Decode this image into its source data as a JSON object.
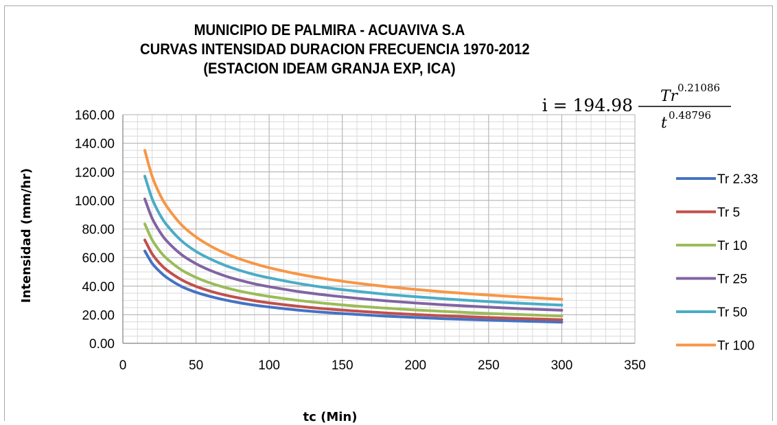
{
  "chart_data": {
    "type": "line",
    "title_lines": [
      "MUNICIPIO DE PALMIRA - ACUAVIVA S.A",
      "CURVAS INTENSIDAD DURACION FRECUENCIA 1970-2012",
      "(ESTACION IDEAM GRANJA EXP, ICA)"
    ],
    "xlabel": "tc (Min)",
    "ylabel": "Intensidad (mm/hr)",
    "xlim": [
      0,
      350
    ],
    "ylim": [
      0,
      160
    ],
    "x_ticks": [
      "0",
      "50",
      "100",
      "150",
      "200",
      "250",
      "300",
      "350"
    ],
    "y_ticks": [
      "0.00",
      "20.00",
      "40.00",
      "60.00",
      "80.00",
      "100.00",
      "120.00",
      "140.00",
      "160.00"
    ],
    "grid": true,
    "legend_position": "right",
    "formula": {
      "lhs": "i = 194.98",
      "numerator_base": "Tr",
      "numerator_exp": "0.21086",
      "denominator_base": "t",
      "denominator_exp": "0.48796"
    },
    "x": [
      15,
      20,
      25,
      30,
      40,
      50,
      60,
      70,
      80,
      90,
      100,
      120,
      140,
      160,
      180,
      200,
      220,
      240,
      260,
      280,
      300
    ],
    "series": [
      {
        "name": "Tr 2.33",
        "color": "#4472c4",
        "values": [
          64.6,
          56.0,
          50.4,
          46.0,
          39.8,
          35.7,
          32.7,
          30.3,
          28.3,
          26.7,
          25.4,
          23.2,
          21.5,
          20.2,
          19.0,
          18.1,
          17.2,
          16.5,
          15.9,
          15.3,
          14.8
        ]
      },
      {
        "name": "Tr 5",
        "color": "#c0504d",
        "values": [
          72.3,
          62.6,
          56.1,
          51.3,
          44.5,
          39.8,
          36.4,
          33.7,
          31.6,
          29.8,
          28.3,
          25.9,
          24.0,
          22.5,
          21.2,
          20.1,
          19.2,
          18.4,
          17.7,
          17.1,
          16.5
        ]
      },
      {
        "name": "Tr 10",
        "color": "#9bbb59",
        "values": [
          83.5,
          72.4,
          64.9,
          59.3,
          51.4,
          46.1,
          42.1,
          39.0,
          36.5,
          34.5,
          32.8,
          30.0,
          27.8,
          26.0,
          24.6,
          23.3,
          22.3,
          21.3,
          20.5,
          19.8,
          19.1
        ]
      },
      {
        "name": "Tr 25",
        "color": "#8064a2",
        "values": [
          101.0,
          87.5,
          78.5,
          71.6,
          62.1,
          55.7,
          50.9,
          47.1,
          44.1,
          41.6,
          39.6,
          36.2,
          33.6,
          31.5,
          29.7,
          28.2,
          26.9,
          25.8,
          24.8,
          23.9,
          23.1
        ]
      },
      {
        "name": "Tr 50",
        "color": "#4bacc6",
        "values": [
          117.0,
          101.2,
          90.6,
          82.8,
          71.8,
          64.3,
          58.9,
          54.5,
          51.0,
          48.1,
          45.8,
          41.9,
          38.8,
          36.4,
          34.3,
          32.6,
          31.1,
          29.8,
          28.6,
          27.6,
          26.7
        ]
      },
      {
        "name": "Tr 100",
        "color": "#f79646",
        "values": [
          135.0,
          116.9,
          104.8,
          95.8,
          83.0,
          74.4,
          68.0,
          63.0,
          59.0,
          55.7,
          52.9,
          48.4,
          44.9,
          42.1,
          39.7,
          37.7,
          35.9,
          34.4,
          33.1,
          31.9,
          30.8
        ]
      }
    ]
  }
}
